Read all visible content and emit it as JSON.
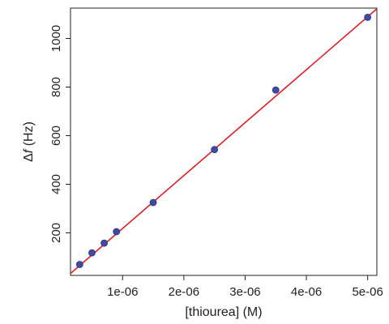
{
  "chart_data": {
    "type": "scatter",
    "title": "",
    "xlabel": "[thiourea] (M)",
    "ylabel_symbol": "Δ",
    "ylabel_var": "f",
    "ylabel_unit": " (Hz)",
    "xlim": [
      1.5e-07,
      5.15e-06
    ],
    "ylim": [
      25,
      1125
    ],
    "x_ticks": [
      1e-06,
      2e-06,
      3e-06,
      4e-06,
      5e-06
    ],
    "x_tick_labels": [
      "1e-06",
      "2e-06",
      "3e-06",
      "4e-06",
      "5e-06"
    ],
    "y_ticks": [
      200,
      400,
      600,
      800,
      1000
    ],
    "y_tick_labels": [
      "200",
      "400",
      "600",
      "800",
      "1000"
    ],
    "grid": false,
    "legend": "none",
    "points": {
      "x": [
        3e-07,
        5e-07,
        7e-07,
        9e-07,
        1.5e-06,
        2.5e-06,
        3.5e-06,
        5e-06
      ],
      "y": [
        70,
        118,
        158,
        205,
        325,
        543,
        788,
        1087
      ]
    },
    "fit_line": {
      "x": [
        1.5e-07,
        5.15e-06
      ],
      "y": [
        33,
        1122
      ]
    },
    "colors": {
      "points": "#3f4aa0",
      "points_edge": "#2b3480",
      "fit_line": "#e01e24",
      "axes": "#222222"
    }
  }
}
